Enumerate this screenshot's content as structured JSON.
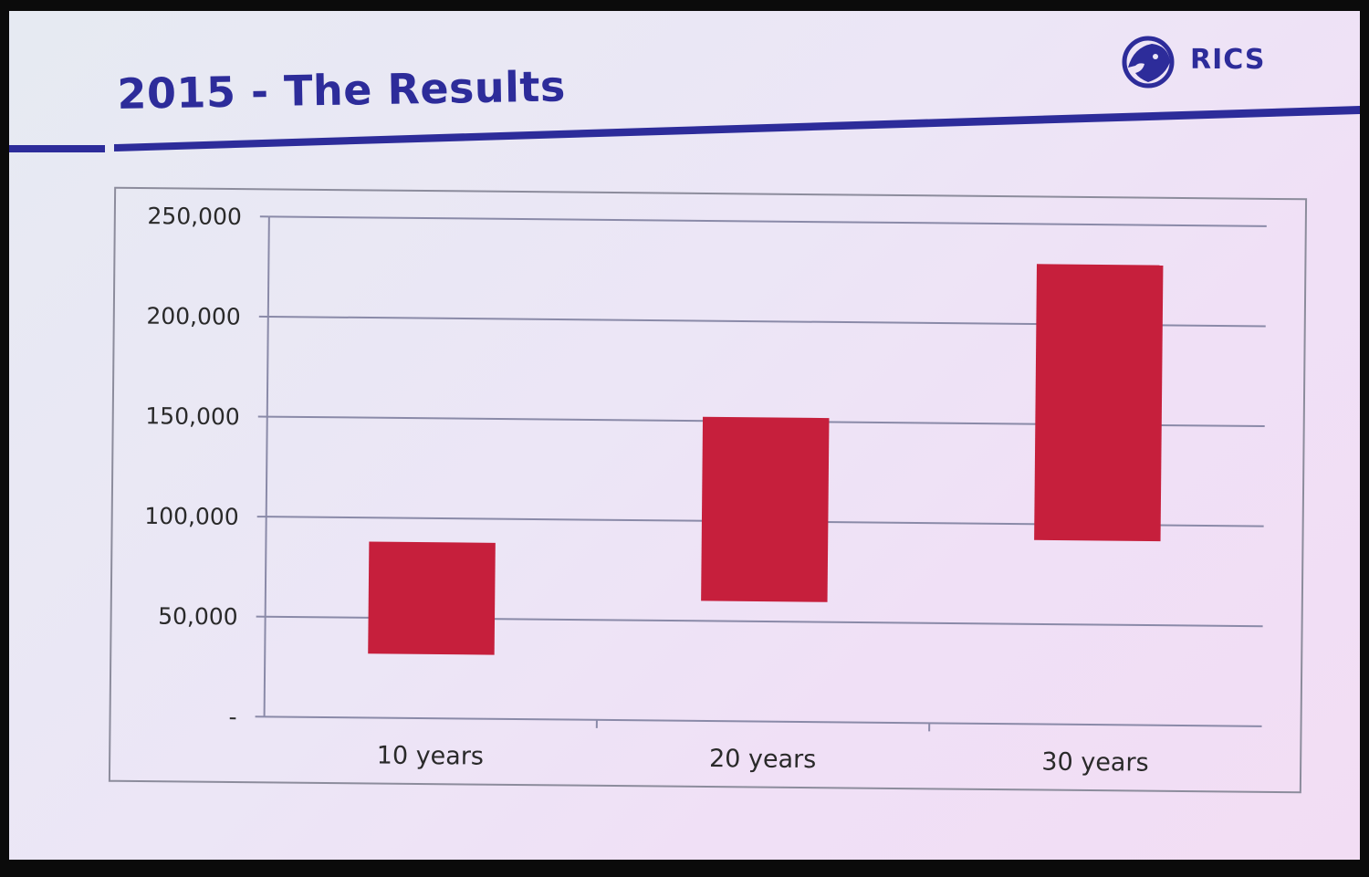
{
  "slide": {
    "title": "2015 - The Results",
    "logo_text": "RICS",
    "logo_icon": "lion-head-icon",
    "accent_color": "#2d2c9a"
  },
  "chart_data": {
    "type": "bar",
    "subtype": "floating-range",
    "categories": [
      "10 years",
      "20 years",
      "30 years"
    ],
    "series": [
      {
        "low": [
          32000,
          60000,
          92000
        ],
        "high": [
          88000,
          152000,
          230000
        ]
      }
    ],
    "yticks": [
      0,
      50000,
      100000,
      150000,
      200000,
      250000
    ],
    "ytick_labels": [
      "-",
      "50,000",
      "100,000",
      "150,000",
      "200,000",
      "250,000"
    ],
    "ylim": [
      0,
      250000
    ],
    "grid": true,
    "legend": "none",
    "bar_color": "#c61f3c",
    "title": "",
    "xlabel": "",
    "ylabel": ""
  }
}
